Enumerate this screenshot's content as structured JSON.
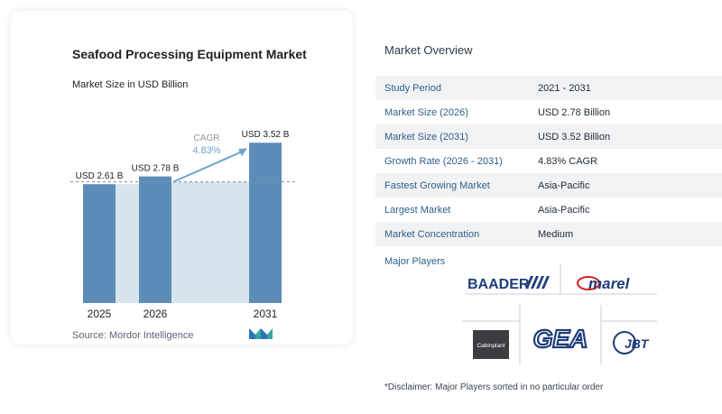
{
  "chart_data": {
    "type": "bar",
    "title": "Seafood Processing Equipment Market",
    "subtitle": "Market Size in USD Billion",
    "categories": [
      "2025",
      "2026",
      "2031"
    ],
    "values": [
      2.61,
      2.78,
      3.52
    ],
    "data_labels": [
      "USD 2.61 B",
      "USD 2.78 B",
      "USD 3.52 B"
    ],
    "cagr_label": "CAGR",
    "cagr_value": "4.83%",
    "colors": {
      "bar": "#5b8db8",
      "bar_light": "#d7e4ee",
      "arrow": "#6fa3c8",
      "text": "#222222"
    }
  },
  "source": "Source: Mordor Intelligence",
  "overview": {
    "title": "Market Overview",
    "rows": [
      {
        "key": "Study Period",
        "value": "2021 - 2031"
      },
      {
        "key": "Market Size (2026)",
        "value": "USD 2.78 Billion"
      },
      {
        "key": "Market Size (2031)",
        "value": "USD 3.52 Billion"
      },
      {
        "key": "Growth Rate (2026 - 2031)",
        "value": "4.83% CAGR"
      },
      {
        "key": "Fastest Growing Market",
        "value": "Asia-Pacific"
      },
      {
        "key": "Largest Market",
        "value": "Asia-Pacific"
      },
      {
        "key": "Market Concentration",
        "value": "Medium"
      }
    ]
  },
  "players": {
    "label": "Major Players",
    "logos": [
      "BAADER",
      "marel",
      "Cabinplant",
      "GEA",
      "JBT"
    ]
  },
  "disclaimer": "*Disclaimer: Major Players sorted in no particular order"
}
